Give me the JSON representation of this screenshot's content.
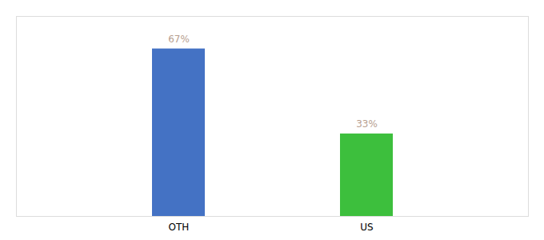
{
  "chart_data": {
    "type": "bar",
    "categories": [
      "OTH",
      "US"
    ],
    "values": [
      67,
      33
    ],
    "value_labels": [
      "67%",
      "33%"
    ],
    "colors": [
      "#4472c4",
      "#3dbf3d"
    ],
    "ylim": [
      0,
      80
    ],
    "data_labels": true,
    "tick_labels": "x",
    "grid": false
  }
}
